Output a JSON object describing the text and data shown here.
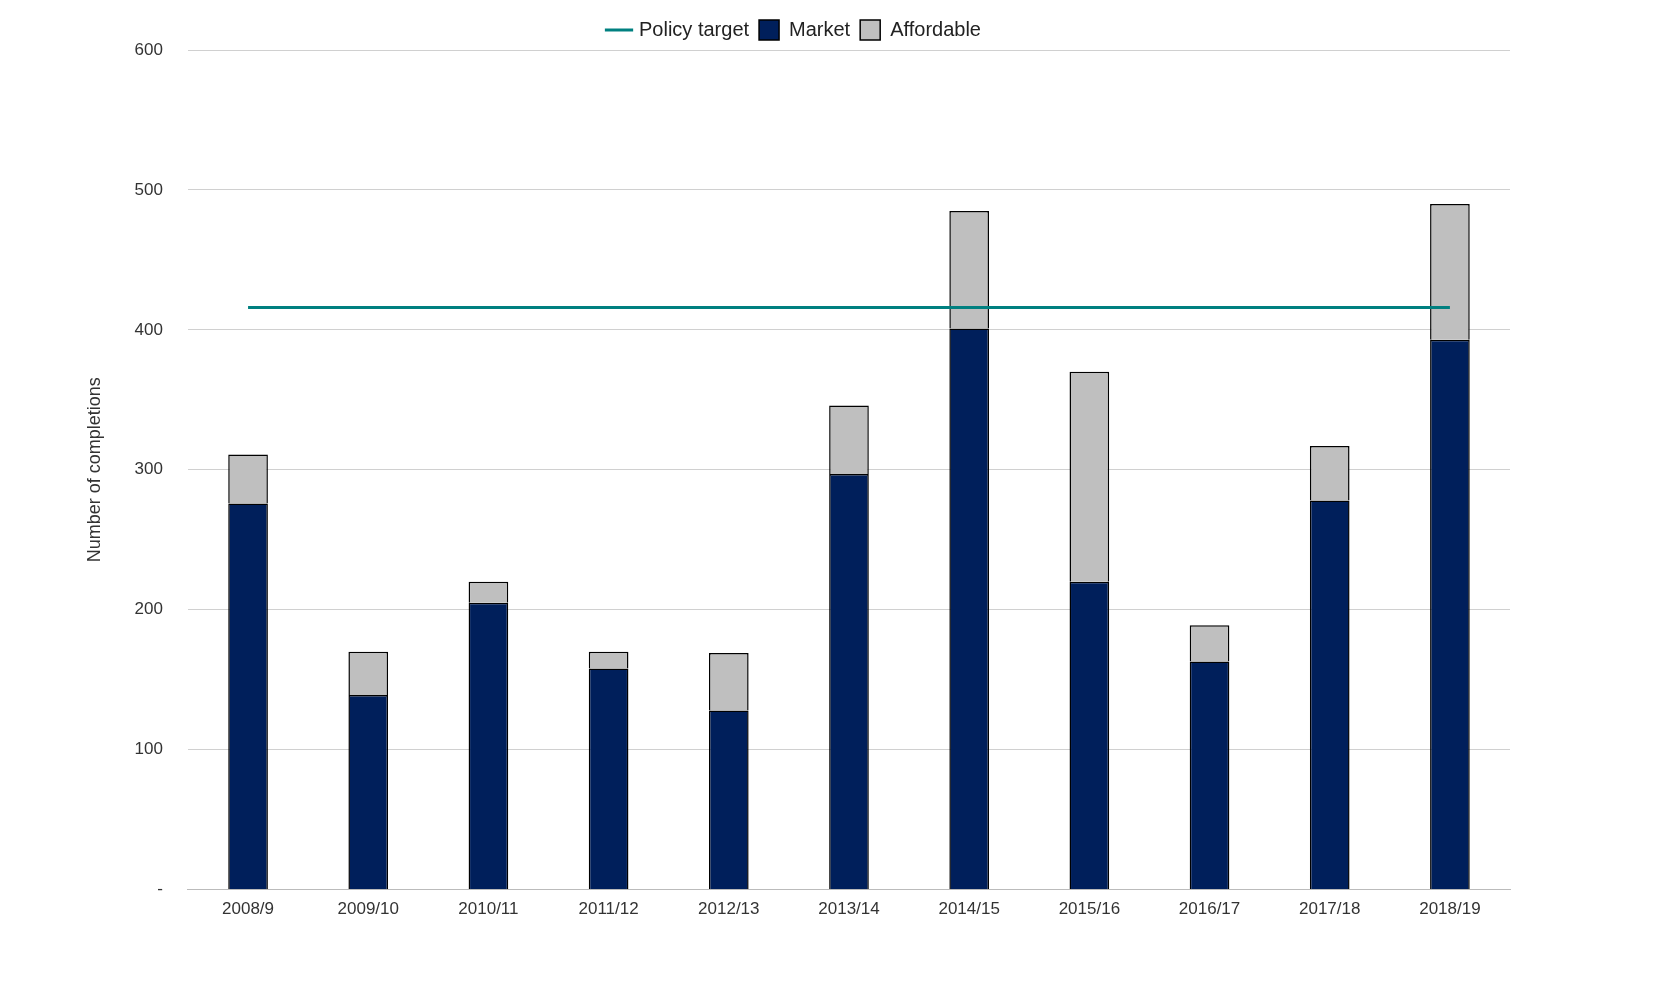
{
  "chart_data": {
    "type": "bar",
    "ylabel": "Number of completions",
    "categories": [
      "2008/9",
      "2009/10",
      "2010/11",
      "2011/12",
      "2012/13",
      "2013/14",
      "2014/15",
      "2015/16",
      "2016/17",
      "2017/18",
      "2018/19"
    ],
    "stacked": true,
    "series": [
      {
        "name": "Market",
        "color": "#001f5b",
        "values": [
          276,
          139,
          205,
          158,
          128,
          297,
          401,
          220,
          163,
          278,
          393
        ]
      },
      {
        "name": "Affordable",
        "color": "#bfbfbf",
        "values": [
          35,
          31,
          15,
          12,
          41,
          49,
          84,
          150,
          26,
          39,
          97
        ]
      },
      {
        "name": "Policy target",
        "type": "line",
        "color": "#008080",
        "values": [
          416,
          416,
          416,
          416,
          416,
          416,
          416,
          416,
          416,
          416,
          416
        ]
      }
    ],
    "ylim": [
      0,
      600
    ],
    "yticks": [
      {
        "value": 0,
        "label": "-"
      },
      100,
      200,
      300,
      400,
      500,
      600
    ],
    "grid": "y",
    "legend": "top",
    "marker": "none"
  }
}
